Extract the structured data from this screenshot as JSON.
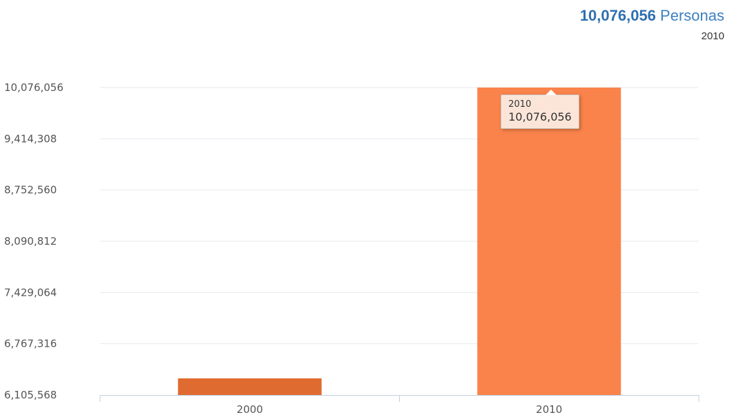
{
  "summary": {
    "value": "10,076,056",
    "unit": "Personas",
    "year": "2010"
  },
  "tooltip": {
    "category": "2010",
    "value": "10,076,056"
  },
  "chart_data": {
    "type": "bar",
    "categories": [
      "2000",
      "2010"
    ],
    "values": [
      6321000,
      10076056
    ],
    "ylim": [
      6105568,
      10076056
    ],
    "yticks": [
      6105568,
      6767316,
      7429064,
      8090812,
      8752560,
      9414308,
      10076056
    ],
    "ytick_labels": [
      "6,105,568",
      "6,767,316",
      "7,429,064",
      "8,090,812",
      "8,752,560",
      "9,414,308",
      "10,076,056"
    ],
    "colors": [
      "#e06b30",
      "#f9834a"
    ],
    "title": "",
    "xlabel": "",
    "ylabel": "",
    "grid": true,
    "legend": "none"
  }
}
